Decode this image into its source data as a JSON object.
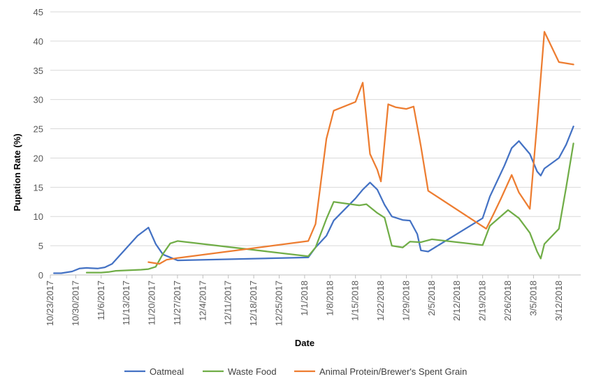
{
  "chart_data": {
    "type": "line",
    "xlabel": "Date",
    "ylabel": "Pupation Rate (%)",
    "ylim": [
      0,
      45
    ],
    "yticks": [
      0,
      5,
      10,
      15,
      20,
      25,
      30,
      35,
      40,
      45
    ],
    "xlim": [
      "2017-10-23",
      "2018-03-18"
    ],
    "xticks": [
      "10/23/2017",
      "10/30/2017",
      "11/6/2017",
      "11/13/2017",
      "11/20/2017",
      "11/27/2017",
      "12/4/2017",
      "12/11/2017",
      "12/18/2017",
      "12/25/2017",
      "1/1/2018",
      "1/8/2018",
      "1/15/2018",
      "1/22/2018",
      "1/29/2018",
      "2/5/2018",
      "2/12/2018",
      "2/19/2018",
      "2/26/2018",
      "3/5/2018",
      "3/12/2018"
    ],
    "grid": "horizontal",
    "legend_position": "bottom",
    "series": [
      {
        "name": "Oatmeal",
        "color": "#4472C4",
        "points": [
          [
            "2017-10-24",
            0.3
          ],
          [
            "2017-10-26",
            0.3
          ],
          [
            "2017-10-29",
            0.6
          ],
          [
            "2017-10-31",
            1.1
          ],
          [
            "2017-11-02",
            1.2
          ],
          [
            "2017-11-05",
            1.1
          ],
          [
            "2017-11-07",
            1.3
          ],
          [
            "2017-11-09",
            1.9
          ],
          [
            "2017-11-16",
            6.7
          ],
          [
            "2017-11-19",
            8.1
          ],
          [
            "2017-11-21",
            5.3
          ],
          [
            "2017-11-23",
            3.5
          ],
          [
            "2017-11-27",
            2.5
          ],
          [
            "2018-01-02",
            3.0
          ],
          [
            "2018-01-04",
            4.7
          ],
          [
            "2018-01-07",
            6.7
          ],
          [
            "2018-01-09",
            9.3
          ],
          [
            "2018-01-15",
            13.1
          ],
          [
            "2018-01-17",
            14.6
          ],
          [
            "2018-01-19",
            15.8
          ],
          [
            "2018-01-21",
            14.6
          ],
          [
            "2018-01-23",
            12.0
          ],
          [
            "2018-01-25",
            10.0
          ],
          [
            "2018-01-28",
            9.4
          ],
          [
            "2018-01-30",
            9.3
          ],
          [
            "2018-02-01",
            7.0
          ],
          [
            "2018-02-02",
            4.2
          ],
          [
            "2018-02-04",
            4.0
          ],
          [
            "2018-02-19",
            9.7
          ],
          [
            "2018-02-21",
            13.4
          ],
          [
            "2018-02-25",
            18.7
          ],
          [
            "2018-02-27",
            21.7
          ],
          [
            "2018-03-01",
            22.9
          ],
          [
            "2018-03-04",
            20.7
          ],
          [
            "2018-03-06",
            17.7
          ],
          [
            "2018-03-07",
            17.0
          ],
          [
            "2018-03-08",
            18.2
          ],
          [
            "2018-03-12",
            20.0
          ],
          [
            "2018-03-14",
            22.3
          ],
          [
            "2018-03-16",
            25.4
          ]
        ]
      },
      {
        "name": "Waste Food",
        "color": "#70AD47",
        "points": [
          [
            "2017-11-02",
            0.4
          ],
          [
            "2017-11-06",
            0.4
          ],
          [
            "2017-11-08",
            0.5
          ],
          [
            "2017-11-10",
            0.7
          ],
          [
            "2017-11-17",
            0.9
          ],
          [
            "2017-11-19",
            1.0
          ],
          [
            "2017-11-21",
            1.4
          ],
          [
            "2017-11-23",
            3.6
          ],
          [
            "2017-11-25",
            5.4
          ],
          [
            "2017-11-27",
            5.8
          ],
          [
            "2018-01-02",
            3.2
          ],
          [
            "2018-01-04",
            4.7
          ],
          [
            "2018-01-07",
            9.6
          ],
          [
            "2018-01-09",
            12.5
          ],
          [
            "2018-01-16",
            11.9
          ],
          [
            "2018-01-18",
            12.1
          ],
          [
            "2018-01-21",
            10.6
          ],
          [
            "2018-01-23",
            9.8
          ],
          [
            "2018-01-25",
            5.0
          ],
          [
            "2018-01-28",
            4.7
          ],
          [
            "2018-01-30",
            5.7
          ],
          [
            "2018-02-02",
            5.6
          ],
          [
            "2018-02-05",
            6.1
          ],
          [
            "2018-02-19",
            5.1
          ],
          [
            "2018-02-21",
            8.4
          ],
          [
            "2018-02-26",
            11.1
          ],
          [
            "2018-03-01",
            9.7
          ],
          [
            "2018-03-04",
            7.2
          ],
          [
            "2018-03-06",
            4.0
          ],
          [
            "2018-03-07",
            2.8
          ],
          [
            "2018-03-08",
            5.3
          ],
          [
            "2018-03-12",
            7.9
          ],
          [
            "2018-03-14",
            15.0
          ],
          [
            "2018-03-16",
            22.5
          ]
        ]
      },
      {
        "name": "Animal Protein/Brewer's Spent Grain",
        "color": "#ED7D31",
        "points": [
          [
            "2017-11-19",
            2.2
          ],
          [
            "2017-11-22",
            1.9
          ],
          [
            "2017-11-24",
            2.6
          ],
          [
            "2017-11-27",
            2.9
          ],
          [
            "2018-01-02",
            5.8
          ],
          [
            "2018-01-04",
            8.7
          ],
          [
            "2018-01-07",
            23.3
          ],
          [
            "2018-01-09",
            28.1
          ],
          [
            "2018-01-15",
            29.6
          ],
          [
            "2018-01-17",
            32.9
          ],
          [
            "2018-01-19",
            20.7
          ],
          [
            "2018-01-21",
            18.0
          ],
          [
            "2018-01-22",
            16.0
          ],
          [
            "2018-01-24",
            29.2
          ],
          [
            "2018-01-26",
            28.7
          ],
          [
            "2018-01-29",
            28.4
          ],
          [
            "2018-01-31",
            28.8
          ],
          [
            "2018-02-02",
            22.0
          ],
          [
            "2018-02-04",
            14.4
          ],
          [
            "2018-02-20",
            7.9
          ],
          [
            "2018-02-22",
            10.4
          ],
          [
            "2018-02-24",
            13.0
          ],
          [
            "2018-02-27",
            17.1
          ],
          [
            "2018-03-01",
            14.1
          ],
          [
            "2018-03-04",
            11.3
          ],
          [
            "2018-03-06",
            26.0
          ],
          [
            "2018-03-08",
            41.6
          ],
          [
            "2018-03-12",
            36.4
          ],
          [
            "2018-03-16",
            36.0
          ]
        ]
      }
    ]
  }
}
